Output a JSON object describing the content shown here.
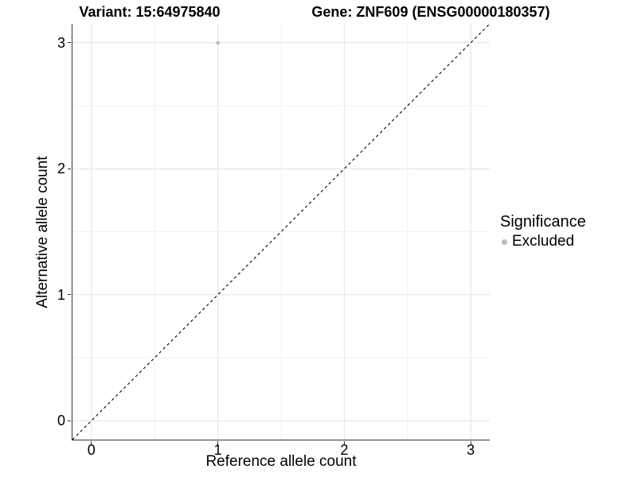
{
  "colors": {
    "background": "#ffffff",
    "text": "#000000",
    "axis_line": "#333333",
    "grid_major": "#e3e3e3",
    "grid_minor": "#f1f1f1",
    "reference_line": "#000000",
    "excluded_point": "#bdbdbd"
  },
  "titles": {
    "variant": "Variant: 15:64975840",
    "gene": "Gene: ZNF609 (ENSG00000180357)"
  },
  "x_axis": {
    "label": "Reference allele count"
  },
  "y_axis": {
    "label": "Alternative allele count"
  },
  "legend": {
    "title": "Significance",
    "items": [
      {
        "label": "Excluded",
        "color": "#bdbdbd"
      }
    ]
  },
  "chart_data": {
    "type": "scatter",
    "title": "Variant: 15:64975840",
    "subtitle": "Gene: ZNF609 (ENSG00000180357)",
    "xlabel": "Reference allele count",
    "ylabel": "Alternative allele count",
    "xlim": [
      -0.15,
      3.15
    ],
    "ylim": [
      -0.15,
      3.15
    ],
    "x_ticks": [
      0,
      1,
      2,
      3
    ],
    "y_ticks": [
      0,
      1,
      2,
      3
    ],
    "grid": {
      "major": true,
      "minor": true
    },
    "legend_position": "right",
    "reference_line": {
      "type": "identity",
      "equation": "y = x",
      "linetype": "dashed",
      "color": "#000000"
    },
    "series": [
      {
        "name": "Excluded",
        "color": "#bdbdbd",
        "points": [
          {
            "x": 1,
            "y": 3
          }
        ]
      }
    ]
  }
}
